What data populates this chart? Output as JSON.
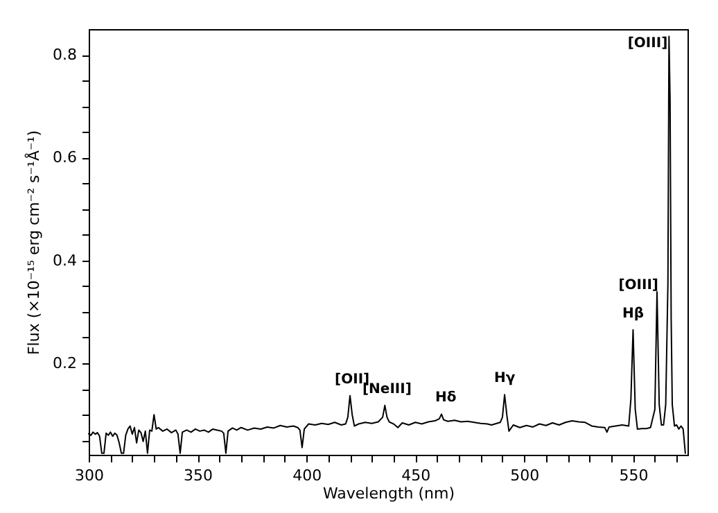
{
  "chart_data": {
    "type": "line",
    "xlabel": "Wavelength (nm)",
    "ylabel": "Flux (×10⁻¹⁵ erg cm⁻² s⁻¹Å⁻¹)",
    "xlim": [
      300,
      575
    ],
    "ylim": [
      0.022,
      0.85
    ],
    "xticks": [
      300,
      {
        "value": 310,
        "label": null
      },
      {
        "value": 320,
        "label": null
      },
      {
        "value": 330,
        "label": null
      },
      {
        "value": 340,
        "label": null
      },
      350,
      {
        "value": 360,
        "label": null
      },
      {
        "value": 370,
        "label": null
      },
      {
        "value": 380,
        "label": null
      },
      {
        "value": 390,
        "label": null
      },
      400,
      {
        "value": 410,
        "label": null
      },
      {
        "value": 420,
        "label": null
      },
      {
        "value": 430,
        "label": null
      },
      {
        "value": 440,
        "label": null
      },
      450,
      {
        "value": 460,
        "label": null
      },
      {
        "value": 470,
        "label": null
      },
      {
        "value": 480,
        "label": null
      },
      {
        "value": 490,
        "label": null
      },
      500,
      {
        "value": 510,
        "label": null
      },
      {
        "value": 520,
        "label": null
      },
      {
        "value": 530,
        "label": null
      },
      {
        "value": 540,
        "label": null
      },
      550,
      {
        "value": 560,
        "label": null
      },
      {
        "value": 570,
        "label": null
      }
    ],
    "yticks": [
      {
        "value": 0.05,
        "label": null
      },
      {
        "value": 0.1,
        "label": null
      },
      {
        "value": 0.15,
        "label": null
      },
      0.2,
      {
        "value": 0.25,
        "label": null
      },
      {
        "value": 0.3,
        "label": null
      },
      {
        "value": 0.35,
        "label": null
      },
      0.4,
      {
        "value": 0.45,
        "label": null
      },
      {
        "value": 0.5,
        "label": null
      },
      {
        "value": 0.55,
        "label": null
      },
      0.6,
      {
        "value": 0.65,
        "label": null
      },
      {
        "value": 0.7,
        "label": null
      },
      {
        "value": 0.75,
        "label": null
      },
      0.8
    ],
    "grid": false,
    "series": [
      {
        "color": "#000000",
        "x": [
          300,
          301,
          302,
          303,
          304,
          305,
          306,
          307,
          308,
          309,
          310,
          311,
          312,
          313,
          314,
          315,
          316,
          317,
          318,
          319,
          320,
          321,
          322,
          323,
          324,
          325,
          326,
          327,
          328,
          329,
          330,
          331,
          332,
          334,
          336,
          338,
          340,
          341,
          342,
          343,
          345,
          347,
          349,
          351,
          353,
          355,
          357,
          359,
          361,
          362,
          363,
          364,
          366,
          368,
          370,
          373,
          376,
          379,
          382,
          385,
          388,
          391,
          394,
          396,
          397,
          398,
          399,
          401,
          404,
          407,
          410,
          413,
          416,
          418,
          419,
          420,
          421,
          422,
          424,
          427,
          430,
          433,
          435,
          436,
          437,
          438,
          440,
          442,
          444,
          447,
          450,
          453,
          456,
          459,
          461,
          462,
          463,
          465,
          468,
          471,
          474,
          477,
          480,
          483,
          485,
          489,
          490,
          491,
          492,
          493,
          495,
          498,
          501,
          504,
          507,
          510,
          513,
          516,
          519,
          522,
          525,
          528,
          531,
          534,
          537,
          538,
          539,
          542,
          545,
          548,
          549,
          550,
          551,
          552,
          554,
          556,
          558,
          560,
          561,
          562,
          563,
          564,
          565,
          566,
          566.5,
          567,
          567.5,
          568,
          569,
          570,
          571,
          572,
          573,
          574
        ],
        "values": [
          0.063,
          0.06,
          0.066,
          0.062,
          0.065,
          0.058,
          0.025,
          0.025,
          0.064,
          0.06,
          0.066,
          0.058,
          0.064,
          0.06,
          0.045,
          0.025,
          0.025,
          0.06,
          0.072,
          0.078,
          0.062,
          0.075,
          0.045,
          0.07,
          0.065,
          0.048,
          0.068,
          0.025,
          0.07,
          0.068,
          0.1,
          0.072,
          0.075,
          0.068,
          0.072,
          0.065,
          0.07,
          0.062,
          0.025,
          0.066,
          0.07,
          0.066,
          0.072,
          0.068,
          0.07,
          0.066,
          0.072,
          0.07,
          0.068,
          0.064,
          0.025,
          0.068,
          0.074,
          0.07,
          0.075,
          0.07,
          0.074,
          0.072,
          0.076,
          0.074,
          0.079,
          0.076,
          0.078,
          0.075,
          0.07,
          0.036,
          0.072,
          0.082,
          0.08,
          0.083,
          0.081,
          0.085,
          0.08,
          0.082,
          0.095,
          0.137,
          0.1,
          0.078,
          0.082,
          0.085,
          0.083,
          0.086,
          0.095,
          0.118,
          0.095,
          0.086,
          0.082,
          0.075,
          0.084,
          0.08,
          0.085,
          0.082,
          0.086,
          0.088,
          0.092,
          0.101,
          0.09,
          0.087,
          0.089,
          0.086,
          0.087,
          0.085,
          0.083,
          0.082,
          0.08,
          0.085,
          0.095,
          0.139,
          0.1,
          0.068,
          0.08,
          0.075,
          0.079,
          0.076,
          0.082,
          0.079,
          0.084,
          0.08,
          0.085,
          0.088,
          0.086,
          0.085,
          0.078,
          0.076,
          0.075,
          0.066,
          0.076,
          0.078,
          0.08,
          0.078,
          0.13,
          0.265,
          0.11,
          0.072,
          0.073,
          0.073,
          0.075,
          0.11,
          0.339,
          0.12,
          0.08,
          0.08,
          0.12,
          0.354,
          0.836,
          0.71,
          0.287,
          0.12,
          0.078,
          0.08,
          0.072,
          0.078,
          0.072,
          0.025
        ]
      }
    ],
    "annotations": [
      {
        "text": "[OII]",
        "x": 421,
        "y": 0.137
      },
      {
        "text": "[NeIII]",
        "x": 437,
        "y": 0.118
      },
      {
        "text": "Hδ",
        "x": 464,
        "y": 0.101
      },
      {
        "text": "Hγ",
        "x": 491,
        "y": 0.139
      },
      {
        "text": "Hβ",
        "x": 550,
        "y": 0.265
      },
      {
        "text": "[OIII]",
        "x": 561,
        "y": 0.339
      },
      {
        "text": "[OIII]",
        "x": 566.5,
        "y": 0.836
      }
    ]
  }
}
